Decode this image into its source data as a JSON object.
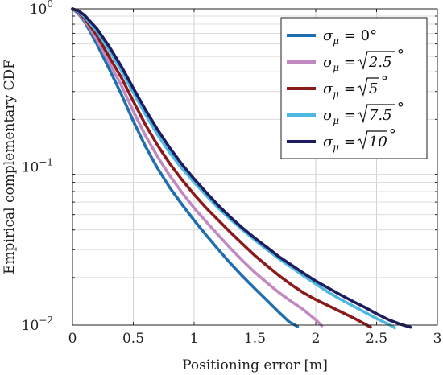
{
  "chart_data": {
    "type": "line",
    "xlabel": "Positioning error [m]",
    "ylabel": "Empirical complementary CDF",
    "xlim": [
      0,
      3
    ],
    "ylim": [
      0.01,
      1
    ],
    "yscale": "log",
    "grid": true,
    "legend_position": "top-right",
    "x_ticks": [
      "0",
      "0.5",
      "1",
      "1.5",
      "2",
      "2.5",
      "3"
    ],
    "y_ticks": [
      {
        "base": "10",
        "exp": "0"
      },
      {
        "base": "10",
        "exp": "−1"
      },
      {
        "base": "10",
        "exp": "−2"
      }
    ],
    "series": [
      {
        "name": "σμ = 0°",
        "legend": {
          "main": "σ",
          "sub": "μ",
          "rest": " = 0°"
        },
        "color": "#1f6fb0",
        "x": [
          0,
          0.05,
          0.1,
          0.2,
          0.3,
          0.4,
          0.5,
          0.6,
          0.7,
          0.8,
          0.9,
          1.0,
          1.1,
          1.2,
          1.3,
          1.4,
          1.5,
          1.6,
          1.7,
          1.78,
          1.85
        ],
        "y": [
          1.0,
          0.93,
          0.83,
          0.6,
          0.42,
          0.29,
          0.195,
          0.135,
          0.098,
          0.074,
          0.058,
          0.046,
          0.037,
          0.03,
          0.0245,
          0.0203,
          0.017,
          0.0143,
          0.012,
          0.0105,
          0.0098
        ]
      },
      {
        "name": "σμ = √2.5°",
        "legend": {
          "main": "σ",
          "sub": "μ",
          "rest": " = ",
          "radicand": "2.5",
          "deg": "°"
        },
        "color": "#c08ac0",
        "x": [
          0,
          0.05,
          0.1,
          0.2,
          0.3,
          0.4,
          0.5,
          0.6,
          0.7,
          0.8,
          0.9,
          1.0,
          1.1,
          1.2,
          1.3,
          1.4,
          1.5,
          1.6,
          1.7,
          1.8,
          1.9,
          2.0,
          2.05
        ],
        "y": [
          1.0,
          0.94,
          0.85,
          0.64,
          0.46,
          0.33,
          0.225,
          0.158,
          0.116,
          0.088,
          0.069,
          0.055,
          0.045,
          0.037,
          0.0305,
          0.0255,
          0.0215,
          0.0185,
          0.016,
          0.0141,
          0.0125,
          0.0108,
          0.0099
        ]
      },
      {
        "name": "σμ = √5°",
        "legend": {
          "main": "σ",
          "sub": "μ",
          "rest": " = ",
          "radicand": "5",
          "deg": "°"
        },
        "color": "#8b1a1a",
        "x": [
          0,
          0.05,
          0.1,
          0.2,
          0.3,
          0.4,
          0.5,
          0.6,
          0.7,
          0.8,
          0.9,
          1.0,
          1.1,
          1.2,
          1.3,
          1.4,
          1.5,
          1.6,
          1.7,
          1.8,
          1.9,
          2.0,
          2.1,
          2.2,
          2.3,
          2.4,
          2.45
        ],
        "y": [
          1.0,
          0.95,
          0.87,
          0.68,
          0.5,
          0.37,
          0.26,
          0.185,
          0.137,
          0.105,
          0.083,
          0.067,
          0.055,
          0.046,
          0.0385,
          0.0325,
          0.0275,
          0.0237,
          0.0205,
          0.018,
          0.016,
          0.0145,
          0.0133,
          0.0122,
          0.0112,
          0.0102,
          0.0097
        ]
      },
      {
        "name": "σμ = √7.5°",
        "legend": {
          "main": "σ",
          "sub": "μ",
          "rest": " = ",
          "radicand": "7.5",
          "deg": "°"
        },
        "color": "#4fb8e0",
        "x": [
          0,
          0.05,
          0.1,
          0.2,
          0.3,
          0.4,
          0.5,
          0.6,
          0.7,
          0.8,
          0.9,
          1.0,
          1.1,
          1.2,
          1.3,
          1.4,
          1.5,
          1.6,
          1.7,
          1.8,
          1.9,
          2.0,
          2.1,
          2.2,
          2.3,
          2.4,
          2.5,
          2.6,
          2.65
        ],
        "y": [
          1.0,
          0.96,
          0.89,
          0.72,
          0.55,
          0.41,
          0.295,
          0.215,
          0.16,
          0.123,
          0.098,
          0.08,
          0.066,
          0.055,
          0.0465,
          0.04,
          0.0345,
          0.03,
          0.0262,
          0.0232,
          0.0205,
          0.0182,
          0.0162,
          0.0146,
          0.0133,
          0.0121,
          0.011,
          0.0101,
          0.0096
        ]
      },
      {
        "name": "σμ = √10°",
        "legend": {
          "main": "σ",
          "sub": "μ",
          "rest": " = ",
          "radicand": "10",
          "deg": "°"
        },
        "color": "#1c1c5e",
        "x": [
          0,
          0.05,
          0.1,
          0.2,
          0.3,
          0.4,
          0.5,
          0.6,
          0.7,
          0.8,
          0.9,
          1.0,
          1.1,
          1.2,
          1.3,
          1.4,
          1.5,
          1.6,
          1.7,
          1.8,
          1.9,
          2.0,
          2.1,
          2.2,
          2.3,
          2.4,
          2.5,
          2.6,
          2.7,
          2.78
        ],
        "y": [
          1.0,
          0.97,
          0.91,
          0.75,
          0.58,
          0.435,
          0.315,
          0.23,
          0.172,
          0.132,
          0.104,
          0.084,
          0.069,
          0.057,
          0.048,
          0.041,
          0.0355,
          0.031,
          0.027,
          0.024,
          0.0213,
          0.019,
          0.0172,
          0.0156,
          0.0142,
          0.013,
          0.0118,
          0.0108,
          0.0101,
          0.0097
        ]
      }
    ]
  }
}
